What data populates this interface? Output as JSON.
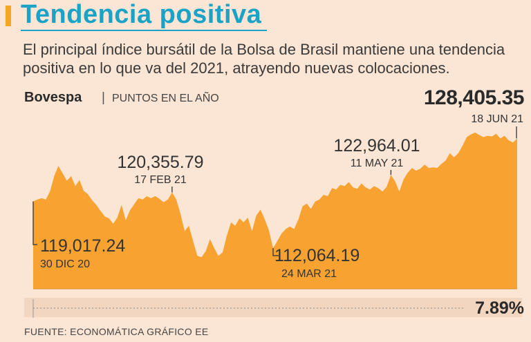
{
  "header": {
    "title": "Tendencia positiva",
    "subtitle": "El principal índice bursátil de la Bolsa de Brasil mantiene una tendencia positiva en lo que va del 2021, atrayendo nuevas colocaciones."
  },
  "series": {
    "name": "Bovespa",
    "separator": "|",
    "unit": "PUNTOS EN EL AÑO"
  },
  "summary": {
    "last_value": "128,405.35",
    "change": "7.89%"
  },
  "annotations": {
    "start": {
      "value": "119,017.24",
      "date": "30 DIC 20"
    },
    "feb_peak": {
      "value": "120,355.79",
      "date": "17 FEB 21"
    },
    "mar_low": {
      "value": "112,064.19",
      "date": "24 MAR 21"
    },
    "may_peak": {
      "value": "122,964.01",
      "date": "11 MAY 21"
    },
    "end": {
      "date": "18 JUN 21"
    }
  },
  "footer": {
    "source": "FUENTE: ECONOMÁTICA   GRÁFICO EE"
  },
  "colors": {
    "title": "#1aa3c6",
    "area": "#f7a231",
    "background": "#fbe6d5",
    "accent": "#f5a623"
  },
  "chart_data": {
    "type": "area",
    "title": "Bovespa",
    "ylabel": "PUNTOS EN EL AÑO",
    "x_start": "30 DIC 20",
    "x_end": "18 JUN 21",
    "ylim": [
      106000,
      130500
    ],
    "values": [
      119017,
      119300,
      119500,
      119300,
      120500,
      122800,
      124300,
      123200,
      122100,
      122800,
      121300,
      122200,
      120600,
      120100,
      119200,
      118500,
      117600,
      116800,
      116500,
      115700,
      116600,
      118500,
      116200,
      117700,
      118600,
      119500,
      119300,
      119800,
      119500,
      119800,
      119400,
      118900,
      119300,
      120356,
      119300,
      117200,
      114600,
      115400,
      113100,
      110900,
      110700,
      111600,
      113400,
      112100,
      110900,
      111400,
      113900,
      115900,
      115400,
      116500,
      115900,
      116600,
      114600,
      116900,
      117800,
      116400,
      114700,
      112064,
      113100,
      114200,
      114900,
      115300,
      114900,
      116300,
      118300,
      118700,
      117900,
      119000,
      119300,
      120000,
      119800,
      121000,
      120800,
      121500,
      121300,
      121900,
      121100,
      120900,
      121700,
      121100,
      120800,
      121300,
      121000,
      120500,
      121200,
      122964,
      122000,
      120500,
      122300,
      123300,
      124000,
      123600,
      123900,
      124500,
      124000,
      124100,
      124000,
      124600,
      125100,
      126200,
      125600,
      126200,
      127300,
      128600,
      129000,
      129300,
      128900,
      128600,
      128800,
      128700,
      129100,
      128400,
      128800,
      128100,
      127800,
      128405
    ]
  }
}
